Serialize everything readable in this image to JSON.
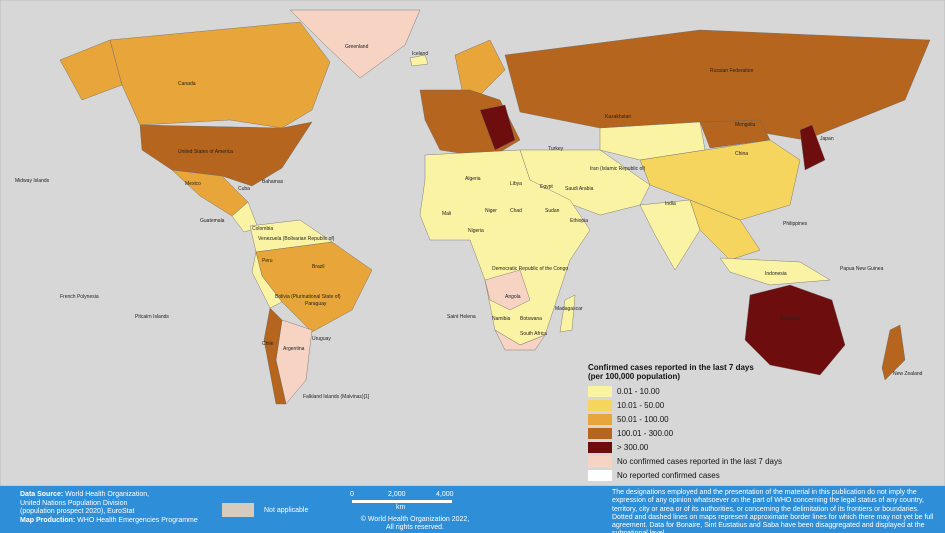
{
  "map": {
    "labels": [
      "Greenland",
      "Iceland",
      "Canada",
      "United States of America",
      "Mexico",
      "Cuba",
      "Bahamas",
      "Guatemala",
      "Colombia",
      "Venezuela (Bolivarian Republic of)",
      "Peru",
      "Brazil",
      "Bolivia (Plurinational State of)",
      "Chile",
      "Argentina",
      "Paraguay",
      "Uruguay",
      "Falkland Islands (Malvinas)[1]",
      "Russian Federation",
      "Kazakhstan",
      "Mongolia",
      "China",
      "India",
      "Japan",
      "Turkey",
      "Iran (Islamic Republic of)",
      "Saudi Arabia",
      "Algeria",
      "Libya",
      "Egypt",
      "Mali",
      "Niger",
      "Chad",
      "Sudan",
      "Ethiopia",
      "Nigeria",
      "Democratic Republic of the Congo",
      "Angola",
      "Namibia",
      "Botswana",
      "South Africa",
      "Madagascar",
      "Australia",
      "New Zealand",
      "Indonesia",
      "Papua New Guinea",
      "Philippines",
      "Midway Islands",
      "Saint Helena",
      "Pitcairn Islands",
      "French Polynesia"
    ]
  },
  "legend": {
    "title": [
      "Confirmed cases reported in the last 7 days",
      "(per 100,000 population)"
    ],
    "items": [
      {
        "label": "0.01 - 10.00",
        "color": "#fbf3a4"
      },
      {
        "label": "10.01 - 50.00",
        "color": "#f5d55d"
      },
      {
        "label": "50.01 - 100.00",
        "color": "#e8a53a"
      },
      {
        "label": "100.01 - 300.00",
        "color": "#b5651d"
      },
      {
        "label": "> 300.00",
        "color": "#6e0d0d"
      },
      {
        "label": "No confirmed cases reported in the last 7 days",
        "color": "#f6d3c3"
      },
      {
        "label": "No reported confirmed cases",
        "color": "#ffffff"
      }
    ]
  },
  "footer": {
    "data_source_label": "Data Source:",
    "data_source": [
      "World Health Organization,",
      "United Nations Population Division",
      "(population prospect 2020), EuroStat"
    ],
    "map_production_label": "Map Production:",
    "map_production": "WHO Health Emergencies Programme",
    "not_applicable": "Not applicable",
    "scale": [
      "0",
      "2,000",
      "4,000"
    ],
    "scale_unit": "km",
    "copyright": [
      "© World Health Organization 2022,",
      "All rights reserved."
    ],
    "disclaimer": "The designations employed and the presentation of the material in this publication do not imply the expression of any opinion whatsoever on the part of WHO concerning the legal status of any country, territory, city or area or of its authorities, or concerning the delimitation of its frontiers or boundaries. Dotted and dashed lines on maps represent approximate border lines for which there may not yet be full agreement. Data for Bonaire, Sint Eustatius and Saba have been disaggregated and displayed at the subnational level."
  }
}
